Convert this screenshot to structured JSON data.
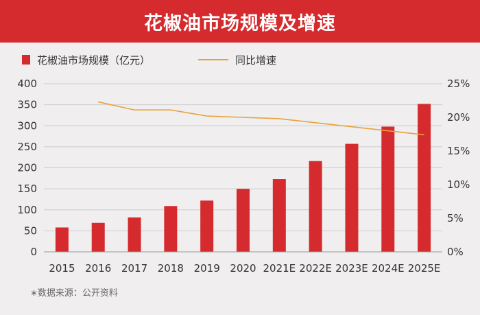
{
  "header": {
    "title": "花椒油市场规模及增速"
  },
  "legend": {
    "bar_label": "花椒油市场规模（亿元）",
    "line_label": "同比增速"
  },
  "source": "∗数据来源：公开资料",
  "colors": {
    "banner": "#d52b2e",
    "bar": "#d52b2e",
    "line": "#e8a23c",
    "grid": "#cccccc"
  },
  "chart_data": {
    "type": "bar",
    "categories": [
      "2015",
      "2016",
      "2017",
      "2018",
      "2019",
      "2020",
      "2021E",
      "2022E",
      "2023E",
      "2024E",
      "2025E"
    ],
    "series": [
      {
        "name": "花椒油市场规模（亿元）",
        "type": "bar",
        "axis": "left",
        "values": [
          58,
          69,
          82,
          109,
          122,
          150,
          173,
          216,
          257,
          298,
          352
        ]
      },
      {
        "name": "同比增速",
        "type": "line",
        "axis": "right",
        "values": [
          null,
          22.3,
          21.1,
          21.1,
          20.2,
          20.0,
          19.8,
          19.2,
          18.6,
          18.0,
          17.4
        ]
      }
    ],
    "y_left": {
      "min": 0,
      "max": 400,
      "ticks": [
        "0",
        "50",
        "100",
        "150",
        "200",
        "250",
        "300",
        "350",
        "400"
      ]
    },
    "y_right": {
      "min": 0,
      "max": 25,
      "ticks": [
        "0%",
        "5%",
        "10%",
        "15%",
        "20%",
        "25%"
      ]
    },
    "grid": true,
    "legend_position": "top-left"
  }
}
